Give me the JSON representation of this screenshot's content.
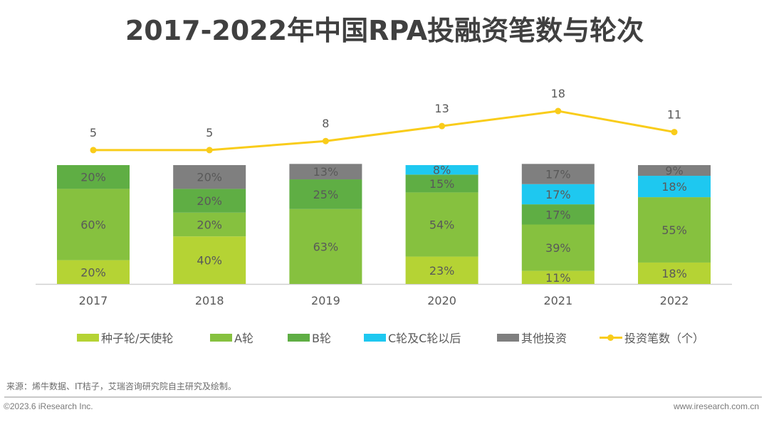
{
  "title": "2017-2022年中国RPA投融资笔数与轮次",
  "chart_data": {
    "type": "bar",
    "subtype": "stacked-percent-with-line",
    "title": "2017-2022年中国RPA投融资笔数与轮次",
    "categories": [
      "2017",
      "2018",
      "2019",
      "2020",
      "2021",
      "2022"
    ],
    "series": [
      {
        "name": "种子轮/天使轮",
        "color": "#b5d334",
        "values": [
          20,
          40,
          0,
          23,
          11,
          18
        ]
      },
      {
        "name": "A轮",
        "color": "#86c13f",
        "values": [
          60,
          20,
          63,
          54,
          39,
          55
        ]
      },
      {
        "name": "B轮",
        "color": "#5fae44",
        "values": [
          20,
          20,
          25,
          15,
          17,
          0
        ]
      },
      {
        "name": "C轮及C轮以后",
        "color": "#1ec8f0",
        "values": [
          0,
          0,
          0,
          8,
          17,
          18
        ]
      },
      {
        "name": "其他投资",
        "color": "#7f7f7f",
        "values": [
          0,
          20,
          13,
          0,
          17,
          9
        ]
      }
    ],
    "line": {
      "name": "投资笔数（个）",
      "color": "#f9cc1a",
      "values": [
        5,
        5,
        8,
        13,
        18,
        11
      ]
    },
    "value_suffix": "%",
    "ylim": [
      0,
      100
    ],
    "grid": false,
    "legend": "bottom"
  },
  "legend": {
    "items": [
      {
        "label": "种子轮/天使轮",
        "color": "#b5d334",
        "type": "bar"
      },
      {
        "label": "A轮",
        "color": "#86c13f",
        "type": "bar"
      },
      {
        "label": "B轮",
        "color": "#5fae44",
        "type": "bar"
      },
      {
        "label": "C轮及C轮以后",
        "color": "#1ec8f0",
        "type": "bar"
      },
      {
        "label": "其他投资",
        "color": "#7f7f7f",
        "type": "bar"
      },
      {
        "label": "投资笔数（个）",
        "color": "#f9cc1a",
        "type": "line"
      }
    ]
  },
  "footer": {
    "source": "来源：烯牛数据、IT桔子，艾瑞咨询研究院自主研究及绘制。",
    "copyright": "©2023.6 iResearch Inc.",
    "website": "www.iresearch.com.cn"
  }
}
